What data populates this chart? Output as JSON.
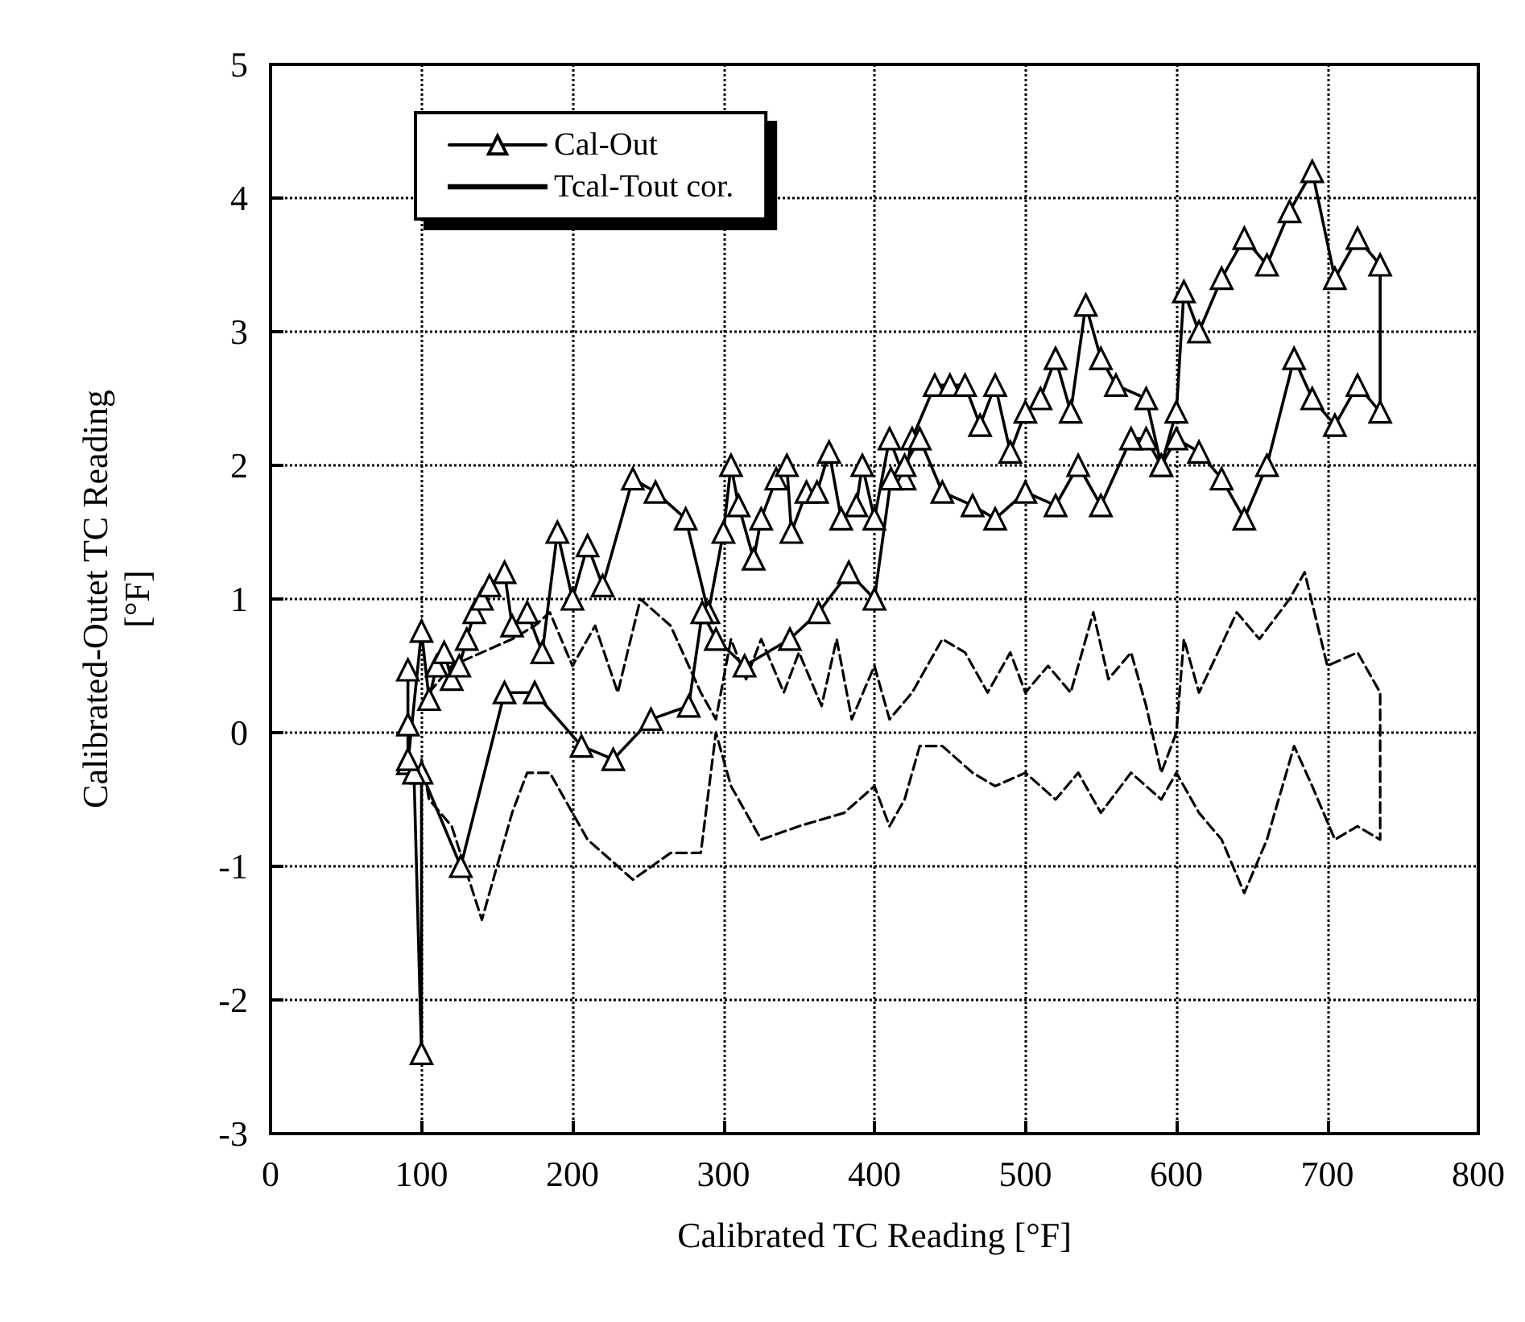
{
  "chart_data": {
    "type": "line",
    "xlabel": "Calibrated TC Reading [°F]",
    "ylabel": "Calibrated-Outet TC Reading\n[°F]",
    "xlim": [
      0,
      800
    ],
    "xticks": [
      0,
      100,
      200,
      300,
      400,
      500,
      600,
      700,
      800
    ],
    "ylim": [
      -3,
      5
    ],
    "yticks": [
      -3,
      -2,
      -1,
      0,
      1,
      2,
      3,
      4,
      5
    ],
    "grid": true,
    "legend": "top left",
    "series": [
      {
        "name": "Cal-Out",
        "color": "#000000",
        "marker": "triangle",
        "line_style": "solid",
        "x": [
          91,
          91,
          91,
          100,
          105,
          110,
          115,
          120,
          125,
          130,
          135,
          140,
          145,
          155,
          160,
          170,
          180,
          190,
          200,
          210,
          220,
          240,
          255,
          275,
          290,
          300,
          305,
          310,
          320,
          325,
          335,
          342,
          345,
          355,
          362,
          370,
          378,
          388,
          392,
          400,
          410,
          420,
          425,
          440,
          450,
          460,
          470,
          480,
          490,
          500,
          510,
          520,
          530,
          540,
          550,
          560,
          580,
          590,
          600,
          605,
          615,
          630,
          645,
          660,
          675,
          690,
          705,
          720,
          735,
          735,
          720,
          705,
          690,
          678,
          660,
          645,
          630,
          615,
          600,
          590,
          580,
          570,
          550,
          535,
          520,
          500,
          480,
          465,
          445,
          430,
          420,
          411,
          400,
          383,
          363,
          344,
          314,
          295,
          286,
          277,
          252,
          227,
          206,
          175,
          155,
          126,
          100,
          100,
          95,
          91
        ],
        "values": [
          0.47,
          0.06,
          -0.23,
          0.76,
          0.25,
          0.5,
          0.6,
          0.4,
          0.5,
          0.7,
          0.9,
          1.0,
          1.1,
          1.2,
          0.8,
          0.9,
          0.6,
          1.5,
          1.0,
          1.4,
          1.1,
          1.9,
          1.8,
          1.6,
          0.9,
          1.5,
          2.0,
          1.7,
          1.3,
          1.6,
          1.9,
          2.0,
          1.5,
          1.8,
          1.8,
          2.1,
          1.6,
          1.7,
          2.0,
          1.6,
          2.2,
          1.9,
          2.2,
          2.6,
          2.6,
          2.6,
          2.3,
          2.6,
          2.1,
          2.4,
          2.5,
          2.8,
          2.4,
          3.2,
          2.8,
          2.6,
          2.5,
          2.0,
          2.4,
          3.3,
          3.0,
          3.4,
          3.7,
          3.5,
          3.9,
          4.2,
          3.4,
          3.7,
          3.5,
          2.4,
          2.6,
          2.3,
          2.5,
          2.8,
          2.0,
          1.6,
          1.9,
          2.1,
          2.2,
          2.0,
          2.2,
          2.2,
          1.7,
          2.0,
          1.7,
          1.8,
          1.6,
          1.7,
          1.8,
          2.2,
          2.0,
          1.9,
          1.0,
          1.2,
          0.9,
          0.7,
          0.5,
          0.7,
          0.9,
          0.2,
          0.1,
          -0.2,
          -0.1,
          0.3,
          0.3,
          -1.0,
          -0.3,
          -2.4,
          -0.3,
          -0.2
        ]
      },
      {
        "name": "Tcal-Tout cor.",
        "color": "#000000",
        "marker": "none",
        "line_style": "dashed",
        "x": [
          105,
          120,
          140,
          160,
          175,
          185,
          200,
          215,
          230,
          245,
          265,
          285,
          295,
          305,
          315,
          325,
          340,
          350,
          365,
          375,
          385,
          400,
          410,
          425,
          445,
          460,
          475,
          490,
          500,
          515,
          530,
          545,
          555,
          570,
          580,
          590,
          600,
          605,
          615,
          640,
          655,
          675,
          685,
          700,
          720,
          735,
          735,
          720,
          705,
          690,
          678,
          660,
          645,
          630,
          615,
          600,
          590,
          580,
          570,
          550,
          535,
          520,
          500,
          480,
          465,
          445,
          430,
          420,
          410,
          400,
          380,
          350,
          325,
          305,
          295,
          285,
          265,
          240,
          210,
          185,
          170,
          160,
          140,
          120,
          105,
          100
        ],
        "values": [
          0.3,
          0.5,
          0.6,
          0.7,
          0.8,
          0.9,
          0.5,
          0.8,
          0.3,
          1.0,
          0.8,
          0.3,
          0.1,
          0.7,
          0.4,
          0.7,
          0.3,
          0.6,
          0.2,
          0.7,
          0.1,
          0.5,
          0.1,
          0.3,
          0.7,
          0.6,
          0.3,
          0.6,
          0.3,
          0.5,
          0.3,
          0.9,
          0.4,
          0.6,
          0.2,
          -0.3,
          0.0,
          0.7,
          0.3,
          0.9,
          0.7,
          1.0,
          1.2,
          0.5,
          0.6,
          0.3,
          -0.8,
          -0.7,
          -0.8,
          -0.4,
          -0.1,
          -0.8,
          -1.2,
          -0.8,
          -0.6,
          -0.3,
          -0.5,
          -0.4,
          -0.3,
          -0.6,
          -0.3,
          -0.5,
          -0.3,
          -0.4,
          -0.3,
          -0.1,
          -0.1,
          -0.5,
          -0.7,
          -0.4,
          -0.6,
          -0.7,
          -0.8,
          -0.4,
          0.0,
          -0.9,
          -0.9,
          -1.1,
          -0.8,
          -0.3,
          -0.3,
          -0.6,
          -1.4,
          -0.7,
          -0.5,
          -0.2
        ]
      }
    ]
  }
}
